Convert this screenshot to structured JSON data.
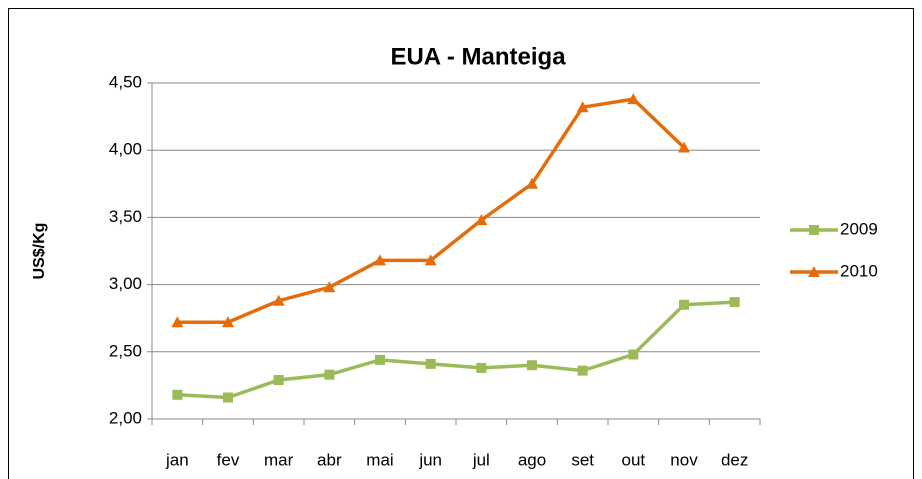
{
  "chart_data": {
    "type": "line",
    "title": "EUA - Manteiga",
    "y_label": "US$/Kg",
    "categories": [
      "jan",
      "fev",
      "mar",
      "abr",
      "mai",
      "jun",
      "jul",
      "ago",
      "set",
      "out",
      "nov",
      "dez"
    ],
    "series": [
      {
        "name": "2009",
        "color": "#9bbb59",
        "marker": "square",
        "values": [
          2.18,
          2.16,
          2.29,
          2.33,
          2.44,
          2.41,
          2.38,
          2.4,
          2.36,
          2.48,
          2.85,
          2.87
        ]
      },
      {
        "name": "2010",
        "color": "#e46c0a",
        "marker": "triangle",
        "values": [
          2.72,
          2.72,
          2.88,
          2.98,
          3.18,
          3.18,
          3.48,
          3.75,
          4.32,
          4.38,
          4.02,
          null
        ]
      }
    ],
    "ylim": [
      2.0,
      4.5
    ],
    "yticks": [
      {
        "value": 2.0,
        "label": "2,00"
      },
      {
        "value": 2.5,
        "label": "2,50"
      },
      {
        "value": 3.0,
        "label": "3,00"
      },
      {
        "value": 3.5,
        "label": "3,50"
      },
      {
        "value": 4.0,
        "label": "4,00"
      },
      {
        "value": 4.5,
        "label": "4,50"
      }
    ],
    "grid": true,
    "legend": "right"
  }
}
